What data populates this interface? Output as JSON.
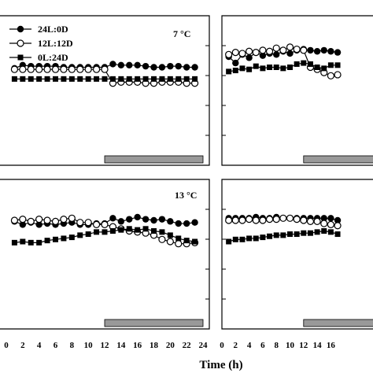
{
  "chart_data": [
    {
      "type": "line",
      "panel": "top-left",
      "title": "7 °C",
      "x": [
        0,
        1,
        2,
        3,
        4,
        5,
        6,
        7,
        8,
        9,
        10,
        11,
        12,
        13,
        14,
        15,
        16,
        17,
        18,
        19,
        20,
        21,
        22,
        23,
        24
      ],
      "xlim": [
        0,
        24
      ],
      "ylim": [
        0,
        100
      ],
      "dark_period": [
        12,
        24
      ],
      "series": [
        {
          "name": "24L:0D",
          "marker": "filled-circle",
          "values": [
            null,
            69,
            72,
            71,
            71,
            71,
            71,
            70,
            70,
            70,
            70,
            70,
            70,
            73,
            72,
            72,
            72,
            71,
            70,
            70,
            71,
            71,
            70,
            70,
            null
          ]
        },
        {
          "name": "12L:12D",
          "marker": "open-circle",
          "values": [
            null,
            68,
            68,
            68,
            68,
            68,
            68,
            68,
            68,
            68,
            68,
            68,
            68,
            55,
            56,
            56,
            56,
            55,
            55,
            56,
            56,
            56,
            55,
            55,
            null
          ]
        },
        {
          "name": "0L:24D",
          "marker": "filled-square",
          "values": [
            null,
            59,
            59,
            59,
            59,
            59,
            59,
            59,
            59,
            59,
            59,
            59,
            59,
            59,
            59,
            59,
            59,
            59,
            59,
            59,
            59,
            59,
            59,
            59,
            null
          ]
        }
      ]
    },
    {
      "type": "line",
      "panel": "top-right",
      "title": "",
      "x": [
        0,
        1,
        2,
        3,
        4,
        5,
        6,
        7,
        8,
        9,
        10,
        11,
        12,
        13,
        14,
        15,
        16,
        17
      ],
      "xlim": [
        0,
        17
      ],
      "ylim": [
        0,
        100
      ],
      "dark_period": [
        12,
        17
      ],
      "series": [
        {
          "name": "24L:0D",
          "marker": "filled-circle",
          "values": [
            null,
            80,
            74,
            82,
            79,
            84,
            81,
            83,
            82,
            85,
            83,
            86,
            87,
            86,
            85,
            86,
            85,
            84
          ]
        },
        {
          "name": "12L:12D",
          "marker": "open-circle",
          "values": [
            null,
            82,
            84,
            83,
            85,
            84,
            86,
            85,
            88,
            86,
            89,
            87,
            86,
            70,
            68,
            65,
            62,
            63
          ]
        },
        {
          "name": "0L:24D",
          "marker": "filled-square",
          "values": [
            null,
            66,
            67,
            69,
            68,
            71,
            69,
            70,
            70,
            69,
            70,
            73,
            74,
            73,
            70,
            69,
            72,
            72
          ]
        }
      ]
    },
    {
      "type": "line",
      "panel": "bottom-left",
      "title": "13 °C",
      "x": [
        0,
        1,
        2,
        3,
        4,
        5,
        6,
        7,
        8,
        9,
        10,
        11,
        12,
        13,
        14,
        15,
        16,
        17,
        18,
        19,
        20,
        21,
        22,
        23,
        24
      ],
      "xlim": [
        0,
        24
      ],
      "ylim": [
        0,
        100
      ],
      "dark_period": [
        12,
        24
      ],
      "series": [
        {
          "name": "24L:0D",
          "marker": "filled-circle",
          "values": [
            null,
            79,
            76,
            78,
            76,
            77,
            76,
            77,
            78,
            76,
            76,
            77,
            77,
            82,
            79,
            81,
            83,
            81,
            80,
            81,
            79,
            77,
            77,
            78,
            null
          ]
        },
        {
          "name": "12L:12D",
          "marker": "open-circle",
          "values": [
            null,
            80,
            81,
            79,
            81,
            80,
            79,
            81,
            82,
            78,
            78,
            76,
            76,
            74,
            72,
            70,
            69,
            68,
            66,
            62,
            60,
            58,
            58,
            59,
            null
          ]
        },
        {
          "name": "0L:24D",
          "marker": "filled-square",
          "values": [
            null,
            59,
            60,
            59,
            59,
            61,
            62,
            63,
            64,
            66,
            67,
            69,
            69,
            70,
            71,
            72,
            71,
            72,
            70,
            69,
            66,
            63,
            61,
            60,
            null
          ]
        }
      ]
    },
    {
      "type": "line",
      "panel": "bottom-right",
      "title": "",
      "x": [
        0,
        1,
        2,
        3,
        4,
        5,
        6,
        7,
        8,
        9,
        10,
        11,
        12,
        13,
        14,
        15,
        16,
        17
      ],
      "xlim": [
        0,
        17
      ],
      "ylim": [
        0,
        100
      ],
      "dark_period": [
        12,
        17
      ],
      "series": [
        {
          "name": "24L:0D",
          "marker": "filled-circle",
          "values": [
            null,
            82,
            82,
            82,
            82,
            83,
            82,
            82,
            83,
            82,
            82,
            82,
            82,
            82,
            82,
            82,
            82,
            80
          ]
        },
        {
          "name": "12L:12D",
          "marker": "open-circle",
          "values": [
            null,
            80,
            80,
            80,
            81,
            80,
            80,
            81,
            81,
            82,
            82,
            81,
            80,
            79,
            79,
            77,
            76,
            75
          ]
        },
        {
          "name": "0L:24D",
          "marker": "filled-square",
          "values": [
            null,
            60,
            62,
            62,
            63,
            63,
            64,
            65,
            66,
            66,
            67,
            67,
            68,
            68,
            69,
            70,
            69,
            67
          ]
        }
      ]
    }
  ],
  "legend": {
    "placement": "top-left",
    "items": [
      {
        "label": "24L:0D",
        "marker": "filled-circle"
      },
      {
        "label": "12L:12D",
        "marker": "open-circle"
      },
      {
        "label": "0L:24D",
        "marker": "filled-square"
      }
    ]
  },
  "x_tick_labels_left": [
    "0",
    "2",
    "4",
    "6",
    "8",
    "10",
    "12",
    "14",
    "16",
    "18",
    "20",
    "22",
    "24"
  ],
  "x_tick_labels_right": [
    "0",
    "2",
    "4",
    "6",
    "8",
    "10",
    "12",
    "14",
    "16"
  ],
  "xlabel": "Time (h)",
  "colors": {
    "line": "#000000",
    "dark_bar": "#999999",
    "marker_fill": "#000000",
    "open_fill": "#ffffff"
  }
}
